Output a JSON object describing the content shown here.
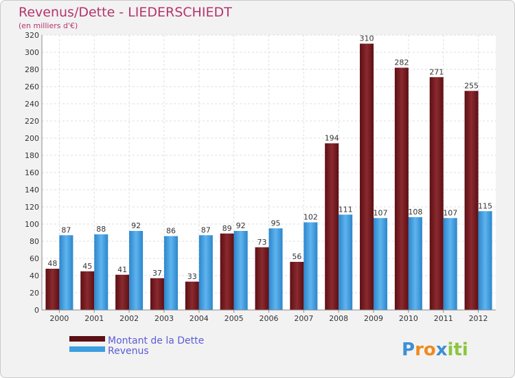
{
  "chart_data": {
    "type": "bar",
    "title": "Revenus/Dette - LIEDERSCHIEDT",
    "subtitle": "(en milliers d'€)",
    "categories": [
      "2000",
      "2001",
      "2002",
      "2003",
      "2004",
      "2005",
      "2006",
      "2007",
      "2008",
      "2009",
      "2010",
      "2011",
      "2012"
    ],
    "series": [
      {
        "name": "Montant de la Dette",
        "color": "#7a1c22",
        "values": [
          48,
          45,
          41,
          37,
          33,
          89,
          73,
          56,
          194,
          310,
          282,
          271,
          255
        ]
      },
      {
        "name": "Revenus",
        "color": "#3d9ee0",
        "values": [
          87,
          88,
          92,
          86,
          87,
          92,
          95,
          102,
          111,
          107,
          108,
          107,
          115
        ]
      }
    ],
    "ylim": [
      0,
      320
    ],
    "yticks": [
      0,
      20,
      40,
      60,
      80,
      100,
      120,
      140,
      160,
      180,
      200,
      220,
      240,
      260,
      280,
      300,
      320
    ],
    "grid": true,
    "legend_position": "bottom-left"
  },
  "logo": {
    "letters": [
      {
        "ch": "P",
        "color": "#3d8fd6"
      },
      {
        "ch": "r",
        "color": "#f08a1c"
      },
      {
        "ch": "o",
        "color": "#f08a1c"
      },
      {
        "ch": "x",
        "color": "#3d8fd6"
      },
      {
        "ch": "i",
        "color": "#8cc63f"
      },
      {
        "ch": "t",
        "color": "#8cc63f"
      },
      {
        "ch": "i",
        "color": "#8cc63f"
      }
    ]
  }
}
